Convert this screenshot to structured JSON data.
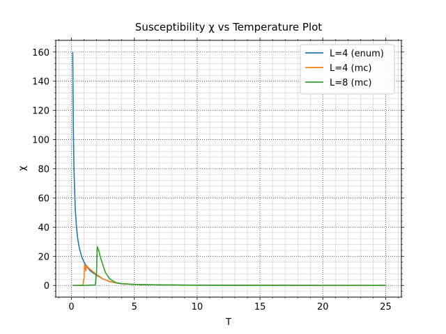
{
  "chart_data": {
    "type": "line",
    "title": "Susceptibility χ vs Temperature Plot",
    "xlabel": "T",
    "ylabel": "χ",
    "xlim": [
      -1.25,
      26.25
    ],
    "ylim": [
      -8,
      168
    ],
    "xticks": [
      0,
      5,
      10,
      15,
      20,
      25
    ],
    "yticks": [
      0,
      20,
      40,
      60,
      80,
      100,
      120,
      140,
      160
    ],
    "x_minor_step": 1,
    "y_minor_step": 4,
    "grid": {
      "major": "dotted",
      "minor": "solid-light"
    },
    "legend": {
      "placement": "top-right"
    },
    "series": [
      {
        "name": "L=4 (enum)",
        "color": "#1f77b4",
        "x": [
          0.1,
          0.15,
          0.2,
          0.3,
          0.4,
          0.5,
          0.6,
          0.8,
          1.0,
          1.2,
          1.5,
          2.0,
          2.5,
          3.0,
          3.5,
          4.0,
          5.0,
          6.0,
          8.0,
          10.0,
          15.0,
          20.0,
          25.0
        ],
        "y": [
          160,
          107,
          80,
          53,
          40,
          32,
          26.7,
          20,
          16,
          13,
          10,
          7,
          4.5,
          2.8,
          1.8,
          1.2,
          0.7,
          0.5,
          0.3,
          0.2,
          0.1,
          0.05,
          0.04
        ]
      },
      {
        "name": "L=4 (mc)",
        "color": "#ff7f0e",
        "x": [
          0.1,
          0.5,
          0.9,
          1.0,
          1.05,
          1.1,
          1.15,
          1.2,
          1.3,
          1.5,
          2.0,
          2.5,
          3.0,
          3.5,
          4.0,
          5.0,
          6.0,
          8.0,
          10.0,
          15.0,
          20.0,
          25.0
        ],
        "y": [
          0,
          0,
          0.2,
          5,
          14.5,
          12,
          10,
          13.5,
          12.5,
          11,
          7.5,
          4.5,
          2.8,
          1.8,
          1.2,
          0.7,
          0.5,
          0.3,
          0.2,
          0.1,
          0.05,
          0.04
        ]
      },
      {
        "name": "L=8 (mc)",
        "color": "#2ca02c",
        "x": [
          0.1,
          1.0,
          1.9,
          2.0,
          2.05,
          2.1,
          2.2,
          2.3,
          2.5,
          2.7,
          3.0,
          3.3,
          3.6,
          4.0,
          5.0,
          6.0,
          8.0,
          10.0,
          15.0,
          20.0,
          25.0
        ],
        "y": [
          0,
          0,
          0.3,
          10,
          26.5,
          25.5,
          23,
          19.5,
          14,
          9,
          5,
          3,
          1.8,
          1.2,
          0.7,
          0.5,
          0.3,
          0.2,
          0.1,
          0.05,
          0.04
        ]
      }
    ]
  }
}
